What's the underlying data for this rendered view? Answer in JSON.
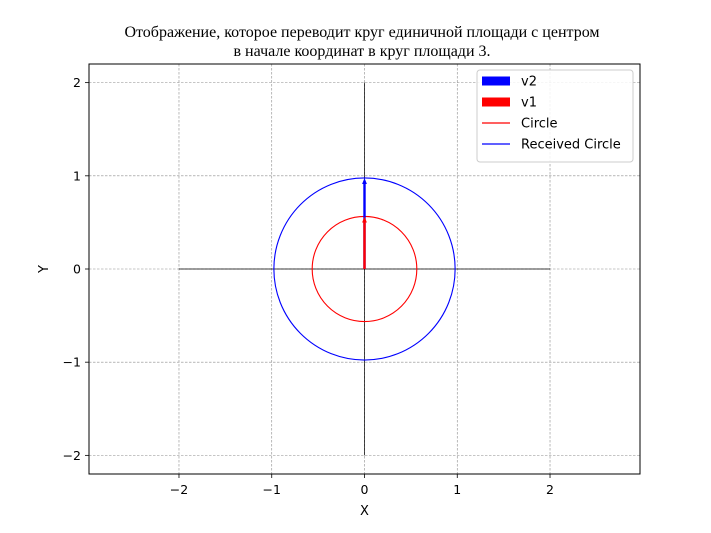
{
  "chart_data": {
    "type": "line",
    "title_lines": [
      "Отображение, которое переводит круг единичной площади с центром",
      "в начале координат в круг площади 3."
    ],
    "xlabel": "X",
    "ylabel": "Y",
    "xlim": [
      -2.97,
      2.97
    ],
    "ylim": [
      -2.2,
      2.2
    ],
    "xticks": [
      -2,
      -1,
      0,
      1,
      2
    ],
    "yticks": [
      -2,
      -1,
      0,
      1,
      2
    ],
    "xtick_labels": [
      "−2",
      "−1",
      "0",
      "1",
      "2"
    ],
    "ytick_labels": [
      "−2",
      "−1",
      "0",
      "1",
      "2"
    ],
    "grid": true,
    "legend_position": "upper right",
    "axes_lines": {
      "horizontal": {
        "y": 0,
        "x_range": [
          -2,
          2
        ]
      },
      "vertical": {
        "x": 0,
        "y_range": [
          -2,
          2
        ]
      }
    },
    "vectors": [
      {
        "name": "v2",
        "from": [
          0,
          0
        ],
        "to": [
          0,
          0.977
        ],
        "color": "#0000ff"
      },
      {
        "name": "v1",
        "from": [
          0,
          0
        ],
        "to": [
          0,
          0.564
        ],
        "color": "#ff0000"
      }
    ],
    "circles": [
      {
        "name": "Circle",
        "center": [
          0,
          0
        ],
        "radius": 0.564,
        "color": "#ff0000"
      },
      {
        "name": "Received Circle",
        "center": [
          0,
          0
        ],
        "radius": 0.977,
        "color": "#0000ff"
      }
    ],
    "legend": [
      {
        "label": "v2",
        "kind": "patch",
        "color": "#0000ff"
      },
      {
        "label": "v1",
        "kind": "patch",
        "color": "#ff0000"
      },
      {
        "label": "Circle",
        "kind": "line",
        "color": "#ff0000"
      },
      {
        "label": "Received Circle",
        "kind": "line",
        "color": "#0000ff"
      }
    ]
  }
}
